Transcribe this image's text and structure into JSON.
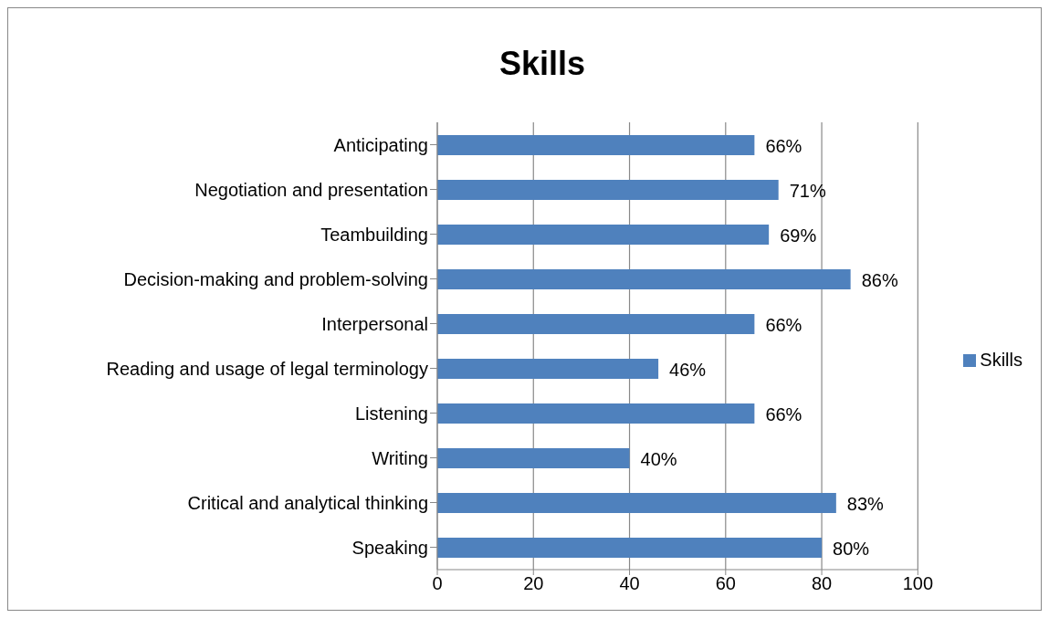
{
  "chart_data": {
    "type": "bar",
    "orientation": "horizontal",
    "title": "Skills",
    "categories": [
      "Anticipating",
      "Negotiation and presentation",
      "Teambuilding",
      "Decision-making and problem-solving",
      "Interpersonal",
      "Reading and usage of legal terminology",
      "Listening",
      "Writing",
      "Critical and analytical thinking",
      "Speaking"
    ],
    "series": [
      {
        "name": "Skills",
        "color": "#4f81bd",
        "values": [
          66,
          71,
          69,
          86,
          66,
          46,
          66,
          40,
          83,
          80
        ],
        "value_labels": [
          "66%",
          "71%",
          "69%",
          "86%",
          "66%",
          "46%",
          "66%",
          "40%",
          "83%",
          "80%"
        ]
      }
    ],
    "xlim": [
      0,
      100
    ],
    "xticks": [
      0,
      20,
      40,
      60,
      80,
      100
    ],
    "grid": "x",
    "legend": "right"
  }
}
